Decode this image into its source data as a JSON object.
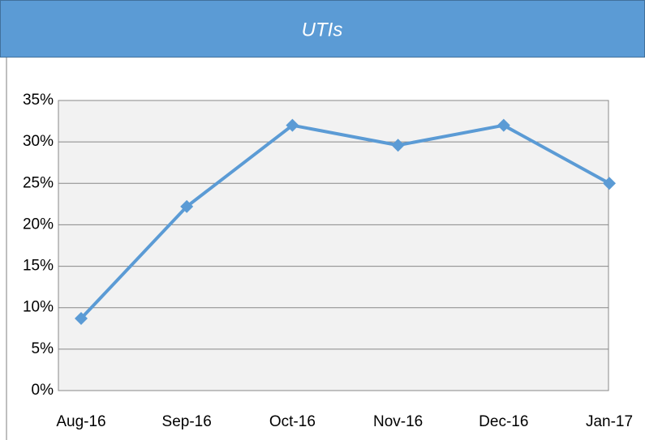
{
  "chart_data": {
    "type": "line",
    "title": "UTIs",
    "categories": [
      "Aug-16",
      "Sep-16",
      "Oct-16",
      "Nov-16",
      "Dec-16",
      "Jan-17"
    ],
    "series": [
      {
        "name": "UTIs",
        "color": "#5b9bd5",
        "values": [
          8.7,
          22.2,
          32,
          29.6,
          32,
          25
        ]
      }
    ],
    "ylim": [
      0,
      35
    ],
    "yticks": [
      {
        "value": 0,
        "label": "0%"
      },
      {
        "value": 5,
        "label": "5%"
      },
      {
        "value": 10,
        "label": "10%"
      },
      {
        "value": 15,
        "label": "15%"
      },
      {
        "value": 20,
        "label": "20%"
      },
      {
        "value": 25,
        "label": "25%"
      },
      {
        "value": 30,
        "label": "30%"
      },
      {
        "value": 35,
        "label": "35%"
      }
    ],
    "grid": true
  }
}
